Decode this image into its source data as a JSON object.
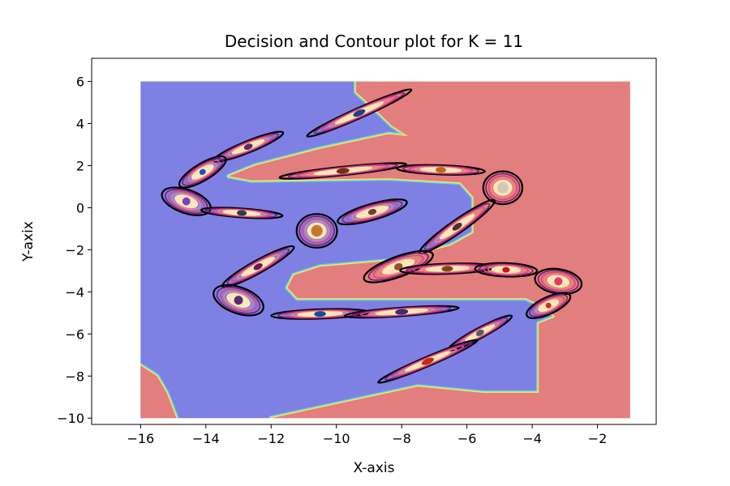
{
  "chart_data": {
    "type": "contour",
    "title": "Decision and Contour plot for K = 11",
    "xlabel": "X-axis",
    "ylabel": "Y-axix",
    "xlim": [
      -17.5,
      -0.2
    ],
    "ylim": [
      -10.3,
      7.1
    ],
    "xticks": [
      -16,
      -14,
      -12,
      -10,
      -8,
      -6,
      -4,
      -2
    ],
    "yticks": [
      -10,
      -8,
      -6,
      -4,
      -2,
      0,
      2,
      4,
      6
    ],
    "xtick_labels": [
      "−16",
      "−14",
      "−12",
      "−10",
      "−8",
      "−6",
      "−4",
      "−2"
    ],
    "ytick_labels": [
      "−10",
      "−8",
      "−6",
      "−4",
      "−2",
      "0",
      "2",
      "4",
      "6"
    ],
    "grid": false,
    "colors": {
      "class_blue": "#7f80e4",
      "class_red": "#e27e7e",
      "boundary_a": "#f6e56a",
      "boundary_b": "#5fd9d8",
      "contour_outer": "#000000",
      "contour_mid": "#7a1b6d",
      "contour_inner": "#d4487f",
      "contour_core": "#fbe6bb"
    },
    "decision_region": {
      "domain_x": [
        -16,
        -1
      ],
      "domain_y": [
        -10,
        6
      ],
      "background_class": "blue",
      "red_regions": [
        [
          [
            -9.4,
            6
          ],
          [
            -1,
            6
          ],
          [
            -1,
            -10
          ],
          [
            -12,
            -10
          ],
          [
            -7.5,
            -8.5
          ],
          [
            -5.5,
            -8.8
          ],
          [
            -3.8,
            -8.8
          ],
          [
            -3.8,
            -5.5
          ],
          [
            -3.3,
            -5.2
          ],
          [
            -3.5,
            -4.8
          ],
          [
            -4.2,
            -4.3
          ],
          [
            -4.6,
            -4.3
          ],
          [
            -11.2,
            -4.3
          ],
          [
            -11.5,
            -3.8
          ],
          [
            -11.3,
            -3.2
          ],
          [
            -10.5,
            -2.8
          ],
          [
            -8.2,
            -2.5
          ],
          [
            -6.5,
            -1.8
          ],
          [
            -5.8,
            -1.2
          ],
          [
            -5.8,
            0.5
          ],
          [
            -6.2,
            1.2
          ],
          [
            -8.4,
            1.4
          ],
          [
            -12.6,
            1.3
          ],
          [
            -13.3,
            1.5
          ],
          [
            -12.5,
            2.0
          ],
          [
            -10.5,
            2.8
          ],
          [
            -8.4,
            3.5
          ],
          [
            -7.8,
            3.4
          ],
          [
            -8.3,
            3.9
          ],
          [
            -8.9,
            4.8
          ],
          [
            -9.4,
            5.5
          ]
        ],
        [
          [
            -16,
            -7.5
          ],
          [
            -15.5,
            -8
          ],
          [
            -15.2,
            -8.8
          ],
          [
            -14.9,
            -10
          ],
          [
            -16,
            -10
          ]
        ]
      ]
    },
    "clusters": [
      {
        "center": [
          -9.3,
          4.5
        ],
        "rx": 1.75,
        "ry": 0.24,
        "angle": 24,
        "color": "#1f3f8f"
      },
      {
        "center": [
          -12.7,
          2.9
        ],
        "rx": 1.15,
        "ry": 0.27,
        "angle": 22,
        "color": "#5a2a6e"
      },
      {
        "center": [
          -14.1,
          1.7
        ],
        "rx": 0.82,
        "ry": 0.4,
        "angle": 31,
        "color": "#1e4fc4"
      },
      {
        "center": [
          -14.6,
          0.3
        ],
        "rx": 0.78,
        "ry": 0.56,
        "angle": -19,
        "color": "#7d3fc0"
      },
      {
        "center": [
          -12.9,
          -0.25
        ],
        "rx": 1.25,
        "ry": 0.21,
        "angle": -4,
        "color": "#2e3d46"
      },
      {
        "center": [
          -9.8,
          1.75
        ],
        "rx": 1.95,
        "ry": 0.2,
        "angle": 6,
        "color": "#7a2f12"
      },
      {
        "center": [
          -6.8,
          1.8
        ],
        "rx": 1.35,
        "ry": 0.22,
        "angle": -2,
        "color": "#b66d1a"
      },
      {
        "center": [
          -4.9,
          0.95
        ],
        "rx": 0.6,
        "ry": 0.78,
        "angle": 0,
        "color": "#d4c8b0"
      },
      {
        "center": [
          -8.9,
          -0.2
        ],
        "rx": 1.1,
        "ry": 0.38,
        "angle": 16,
        "color": "#7b3a3a"
      },
      {
        "center": [
          -10.6,
          -1.1
        ],
        "rx": 0.62,
        "ry": 0.8,
        "angle": 0,
        "color": "#c4782f"
      },
      {
        "center": [
          -6.3,
          -0.9
        ],
        "rx": 1.4,
        "ry": 0.31,
        "angle": 35,
        "color": "#4f3030"
      },
      {
        "center": [
          -12.4,
          -2.8
        ],
        "rx": 1.25,
        "ry": 0.3,
        "angle": 29,
        "color": "#6a1560"
      },
      {
        "center": [
          -8.1,
          -2.8
        ],
        "rx": 1.12,
        "ry": 0.48,
        "angle": 20,
        "color": "#9a5030"
      },
      {
        "center": [
          -6.6,
          -2.9
        ],
        "rx": 1.45,
        "ry": 0.24,
        "angle": 2,
        "color": "#7a4a0a"
      },
      {
        "center": [
          -4.8,
          -2.95
        ],
        "rx": 0.95,
        "ry": 0.32,
        "angle": -2,
        "color": "#c41616"
      },
      {
        "center": [
          -3.2,
          -3.5
        ],
        "rx": 0.72,
        "ry": 0.58,
        "angle": -9,
        "color": "#e04060"
      },
      {
        "center": [
          -13.0,
          -4.4
        ],
        "rx": 0.8,
        "ry": 0.62,
        "angle": -20,
        "color": "#5a2a6e"
      },
      {
        "center": [
          -10.5,
          -5.05
        ],
        "rx": 1.5,
        "ry": 0.22,
        "angle": 2,
        "color": "#0e4fa0"
      },
      {
        "center": [
          -8.0,
          -4.95
        ],
        "rx": 1.75,
        "ry": 0.2,
        "angle": 4,
        "color": "#3c2f72"
      },
      {
        "center": [
          -3.5,
          -4.65
        ],
        "rx": 0.73,
        "ry": 0.4,
        "angle": 25,
        "color": "#d03016"
      },
      {
        "center": [
          -5.6,
          -5.95
        ],
        "rx": 1.1,
        "ry": 0.24,
        "angle": 28,
        "color": "#555a66"
      },
      {
        "center": [
          -7.2,
          -7.3
        ],
        "rx": 1.65,
        "ry": 0.22,
        "angle": 23,
        "color": "#c42a10"
      }
    ]
  }
}
